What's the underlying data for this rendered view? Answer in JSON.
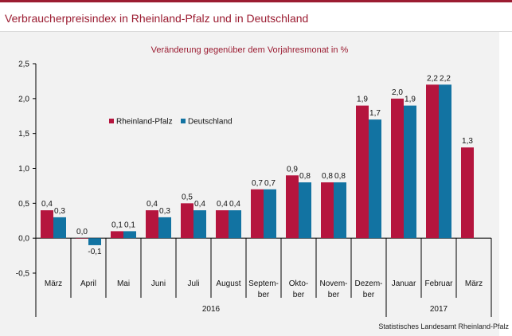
{
  "title": "Verbraucherpreisindex in Rheinland-Pfalz und in Deutschland",
  "source": "Statistisches Landesamt Rheinland-Pfalz",
  "colors": {
    "accent": "#9b1c31",
    "rlp": "#b5153e",
    "de": "#1273a2"
  },
  "chart_data": {
    "type": "bar",
    "title": "Veränderung gegenüber dem Vorjahresmonat in %",
    "categories": [
      [
        "März"
      ],
      [
        "April"
      ],
      [
        "Mai"
      ],
      [
        "Juni"
      ],
      [
        "Juli"
      ],
      [
        "August"
      ],
      [
        "Septem-",
        "ber"
      ],
      [
        "Okto-",
        "ber"
      ],
      [
        "Novem-",
        "ber"
      ],
      [
        "Dezem-",
        "ber"
      ],
      [
        "Januar"
      ],
      [
        "Februar"
      ],
      [
        "März"
      ]
    ],
    "years": [
      {
        "label": "2016",
        "start": 0,
        "end": 9
      },
      {
        "label": "2017",
        "start": 10,
        "end": 12
      }
    ],
    "series": [
      {
        "name": "Rheinland-Pfalz",
        "values": [
          0.4,
          0.0,
          0.1,
          0.4,
          0.5,
          0.4,
          0.7,
          0.9,
          0.8,
          1.9,
          2.0,
          2.2,
          1.3
        ],
        "labels": [
          "0,4",
          "0,0",
          "0,1",
          "0,4",
          "0,5",
          "0,4",
          "0,7",
          "0,9",
          "0,8",
          "1,9",
          "2,0",
          "2,2",
          "1,3"
        ]
      },
      {
        "name": "Deutschland",
        "values": [
          0.3,
          -0.1,
          0.1,
          0.3,
          0.4,
          0.4,
          0.7,
          0.8,
          0.8,
          1.7,
          1.9,
          2.2,
          null
        ],
        "labels": [
          "0,3",
          "-0,1",
          "0,1",
          "0,3",
          "0,4",
          "0,4",
          "0,7",
          "0,8",
          "0,8",
          "1,7",
          "1,9",
          "2,2",
          ""
        ]
      }
    ],
    "ylim": [
      -0.5,
      2.5
    ],
    "yticks": [
      -0.5,
      0.0,
      0.5,
      1.0,
      1.5,
      2.0,
      2.5
    ],
    "ytick_labels": [
      "-0,5",
      "0,0",
      "0,5",
      "1,0",
      "1,5",
      "2,0",
      "2,5"
    ],
    "legend_position": "left-middle",
    "grid": false
  }
}
